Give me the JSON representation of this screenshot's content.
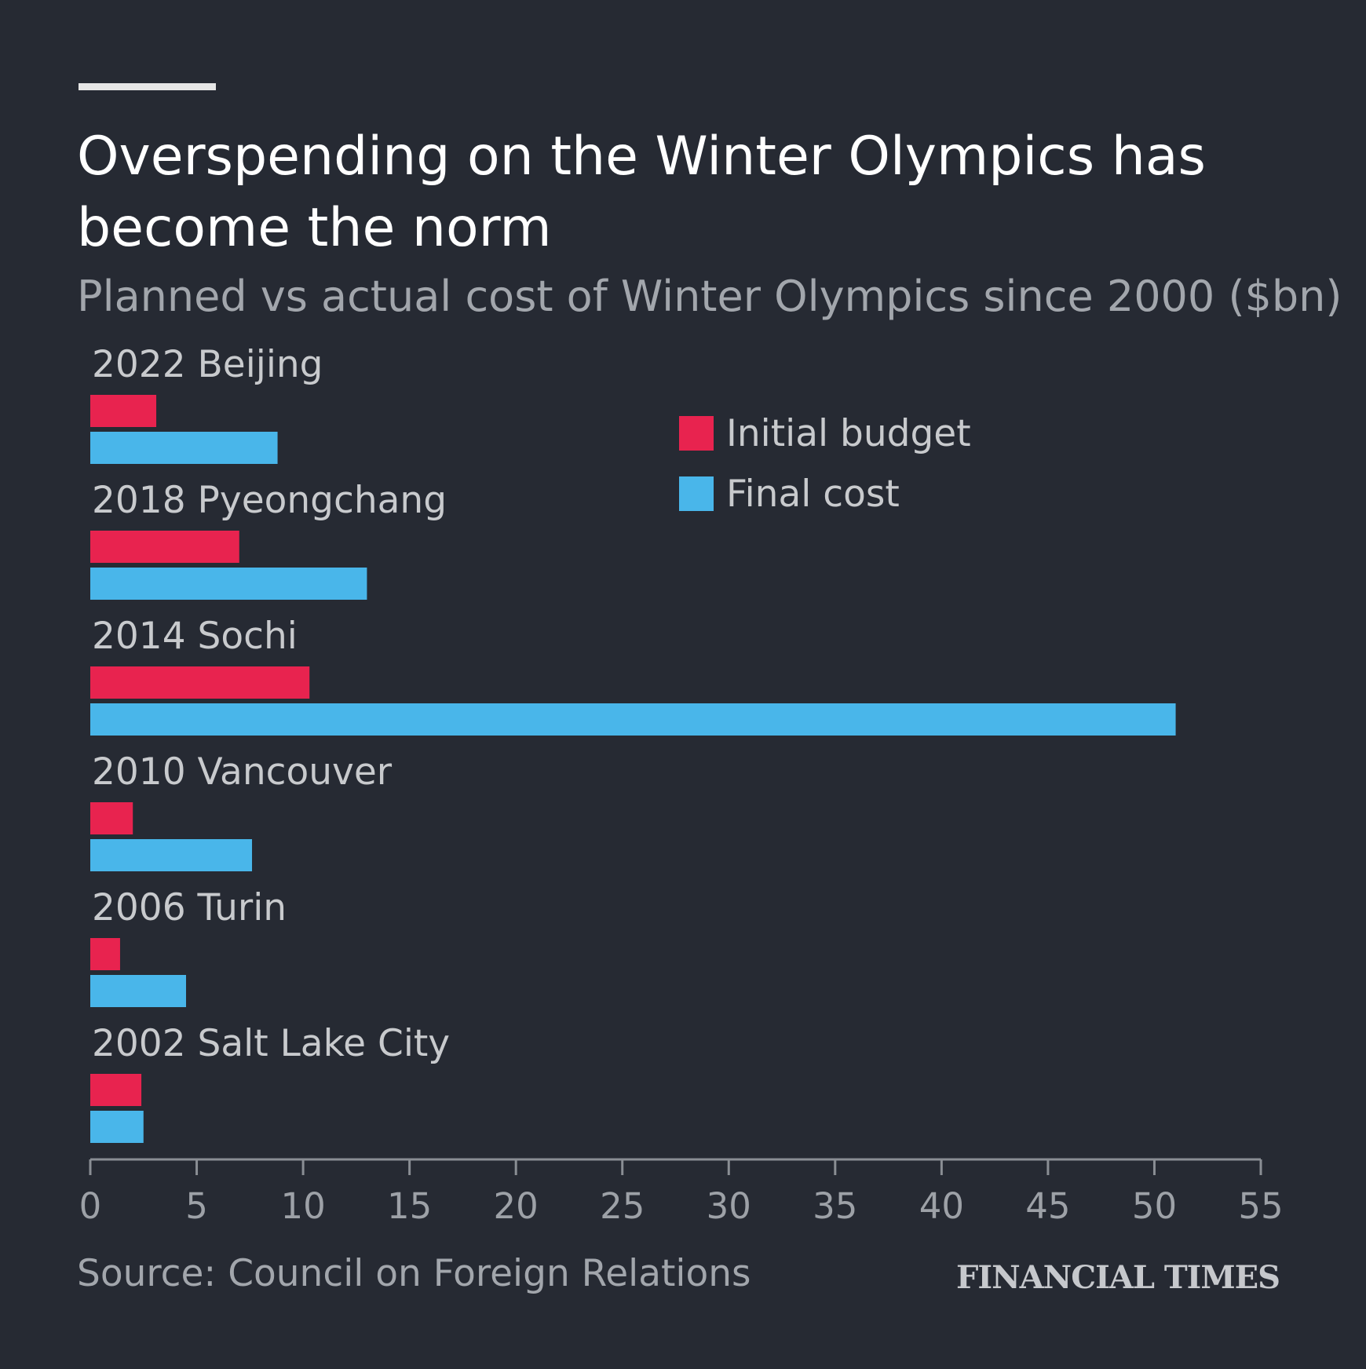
{
  "chart_data": {
    "type": "bar",
    "orientation": "horizontal",
    "title": "Overspending on the Winter Olympics has become the norm",
    "title_lines": [
      "Overspending on the Winter Olympics has",
      "become the norm"
    ],
    "subtitle": "Planned vs actual cost of Winter Olympics since 2000 ($bn)",
    "categories": [
      "2022 Beijing",
      "2018 Pyeongchang",
      "2014 Sochi",
      "2010 Vancouver",
      "2006 Turin",
      "2002 Salt Lake City"
    ],
    "series": [
      {
        "name": "Initial budget",
        "color": "#e8234f",
        "values": [
          3.1,
          7.0,
          10.3,
          2.0,
          1.4,
          2.4
        ]
      },
      {
        "name": "Final cost",
        "color": "#49b6ea",
        "values": [
          8.8,
          13.0,
          51.0,
          7.6,
          4.5,
          2.5
        ]
      }
    ],
    "xlim": [
      0,
      55
    ],
    "xticks": [
      0,
      5,
      10,
      15,
      20,
      25,
      30,
      35,
      40,
      45,
      50,
      55
    ],
    "xlabel": "",
    "ylabel": "",
    "grid": false,
    "legend_position": "top-center"
  },
  "source": "Source: Council on Foreign Relations",
  "brand": "FINANCIAL TIMES",
  "colors": {
    "background": "#262a33",
    "axis": "#8a8e94",
    "accent_bar": "#e6e6e6"
  }
}
